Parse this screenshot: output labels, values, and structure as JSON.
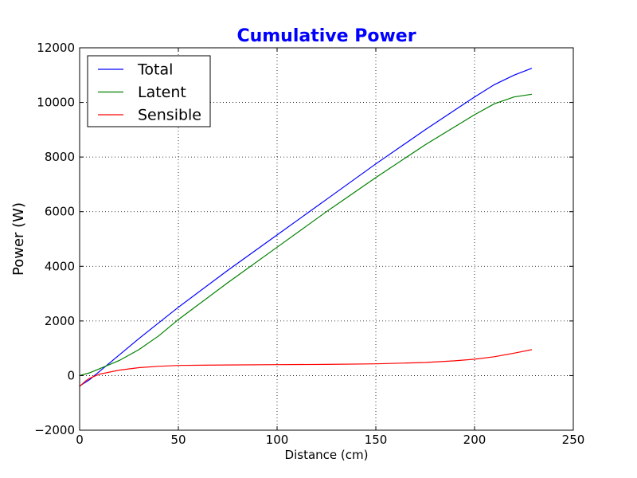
{
  "chart_data": {
    "type": "line",
    "title": "Cumulative Power",
    "title_color": "#0000ff",
    "xlabel": "Distance (cm)",
    "ylabel": "Power (W)",
    "xlim": [
      0,
      250
    ],
    "ylim": [
      -2000,
      12000
    ],
    "xticks": [
      0,
      50,
      100,
      150,
      200,
      250
    ],
    "yticks": [
      -2000,
      0,
      2000,
      4000,
      6000,
      8000,
      10000,
      12000
    ],
    "xtick_labels": [
      "0",
      "50",
      "100",
      "150",
      "200",
      "250"
    ],
    "ytick_labels": [
      "−2000",
      "0",
      "2000",
      "4000",
      "6000",
      "8000",
      "10000",
      "12000"
    ],
    "grid": true,
    "legend_position": "top-left",
    "series": [
      {
        "name": "Total",
        "color": "#0000ff",
        "x": [
          0,
          5,
          10,
          20,
          30,
          40,
          50,
          75,
          100,
          125,
          150,
          175,
          200,
          210,
          220,
          229
        ],
        "y": [
          -380,
          -150,
          150,
          750,
          1350,
          1930,
          2500,
          3850,
          5150,
          6450,
          7750,
          9000,
          10200,
          10650,
          11000,
          11250
        ]
      },
      {
        "name": "Latent",
        "color": "#008000",
        "x": [
          0,
          5,
          10,
          20,
          30,
          40,
          50,
          75,
          100,
          125,
          150,
          175,
          200,
          210,
          220,
          229
        ],
        "y": [
          0,
          100,
          250,
          550,
          950,
          1450,
          2050,
          3400,
          4700,
          6000,
          7250,
          8450,
          9550,
          9950,
          10200,
          10300
        ]
      },
      {
        "name": "Sensible",
        "color": "#ff0000",
        "x": [
          0,
          3,
          5,
          10,
          20,
          30,
          40,
          50,
          75,
          100,
          125,
          150,
          175,
          190,
          200,
          210,
          220,
          229
        ],
        "y": [
          -400,
          -200,
          -100,
          50,
          200,
          290,
          340,
          370,
          390,
          400,
          410,
          430,
          480,
          540,
          600,
          690,
          820,
          950
        ]
      }
    ]
  }
}
